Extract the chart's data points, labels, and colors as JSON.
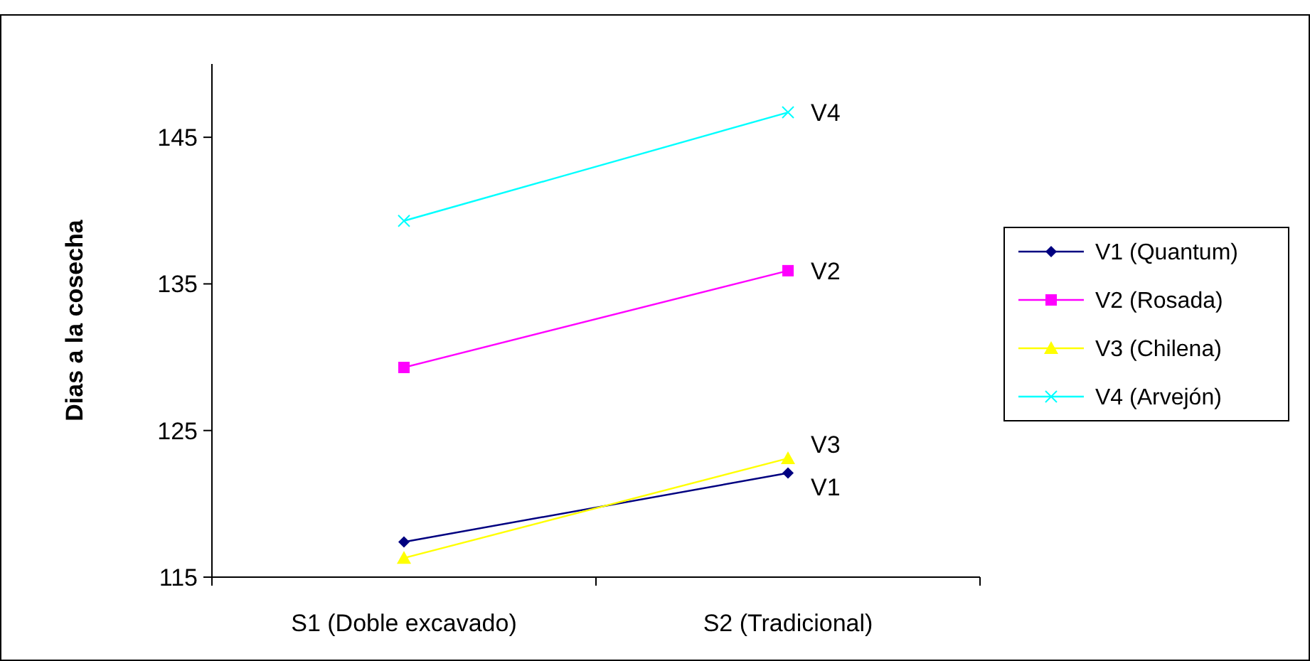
{
  "chart_data": {
    "type": "line",
    "ylabel": "Dias a la cosecha",
    "categories": [
      "S1 (Doble excavado)",
      "S2 (Tradicional)"
    ],
    "ylim": [
      115,
      150
    ],
    "yticks": [
      115,
      125,
      135,
      145
    ],
    "legend": "right",
    "grid": false,
    "series": [
      {
        "name": "V1 (Quantum)",
        "color": "#000080",
        "marker": "diamond",
        "values": [
          117.4,
          122.1
        ]
      },
      {
        "name": "V2 (Rosada)",
        "color": "#ff00ff",
        "marker": "square",
        "values": [
          129.3,
          135.9
        ]
      },
      {
        "name": "V3 (Chilena)",
        "color": "#ffff00",
        "marker": "triangle",
        "values": [
          116.3,
          123.1
        ]
      },
      {
        "name": "V4 (Arvejón)",
        "color": "#00ffff",
        "marker": "cross",
        "values": [
          139.3,
          146.7
        ]
      }
    ],
    "annotations": [
      {
        "text": "V4",
        "x": "S2 (Tradicional)",
        "y": 146.7
      },
      {
        "text": "V2",
        "x": "S2 (Tradicional)",
        "y": 135.9
      },
      {
        "text": "V3",
        "x": "S2 (Tradicional)",
        "y": 123.1
      },
      {
        "text": "V1",
        "x": "S2 (Tradicional)",
        "y": 122.1
      }
    ]
  }
}
